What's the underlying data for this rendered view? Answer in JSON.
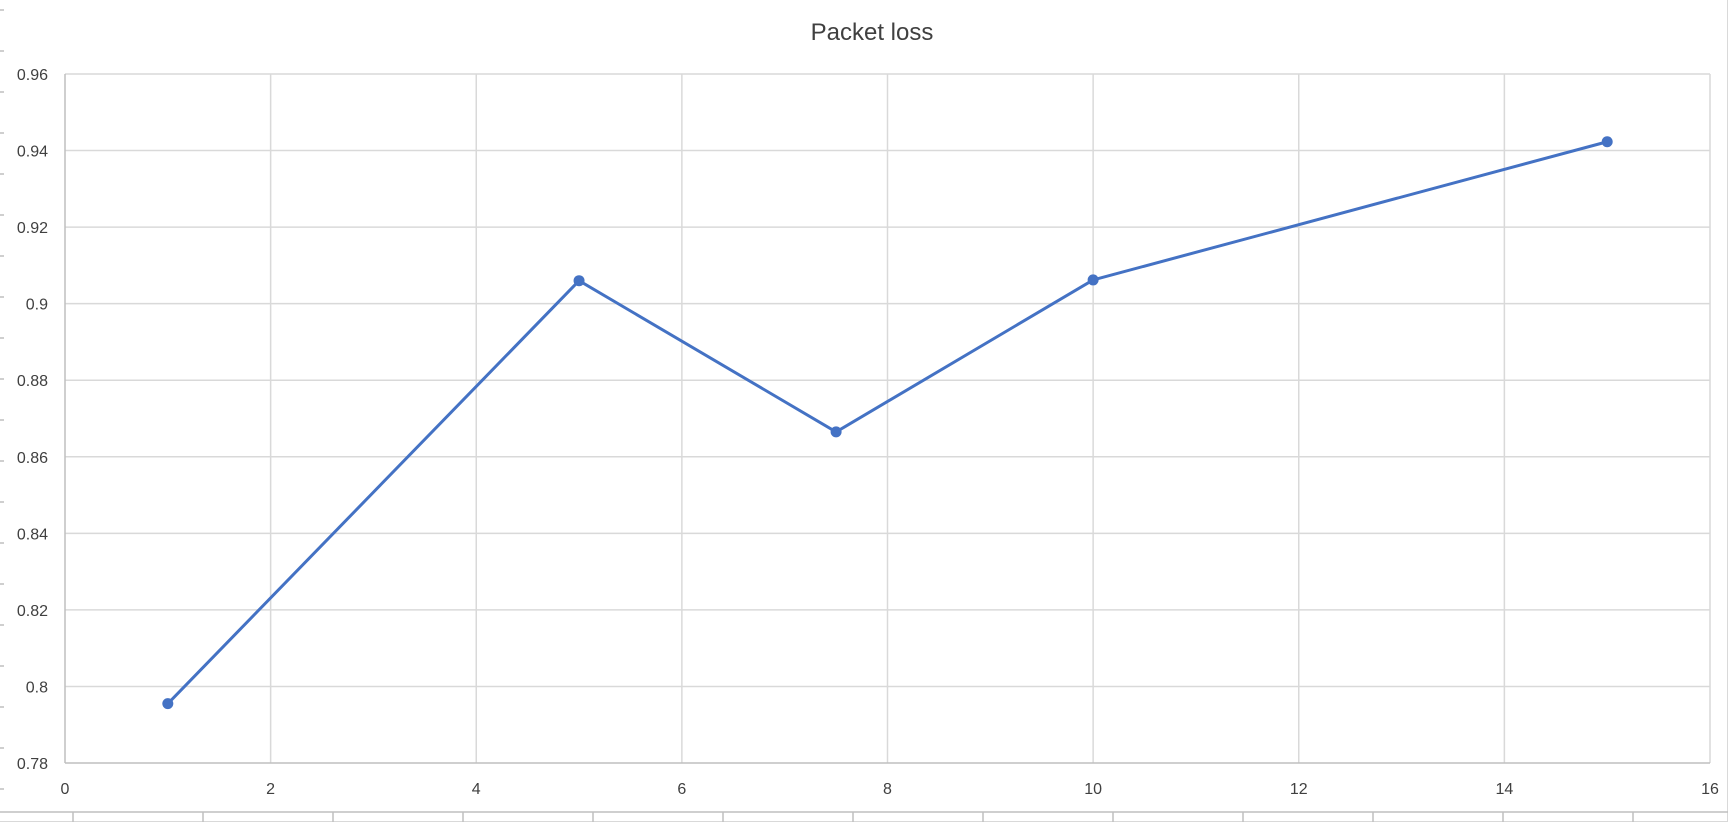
{
  "chart_data": {
    "type": "scatter",
    "title": "Packet loss",
    "xlabel": "",
    "ylabel": "",
    "xlim": [
      0,
      16
    ],
    "ylim": [
      0.78,
      0.96
    ],
    "xticks": [
      "0",
      "2",
      "4",
      "6",
      "8",
      "10",
      "12",
      "14",
      "16"
    ],
    "yticks": [
      "0.78",
      "0.8",
      "0.82",
      "0.84",
      "0.86",
      "0.88",
      "0.9",
      "0.92",
      "0.94",
      "0.96"
    ],
    "grid": true,
    "legend": "none",
    "series": [
      {
        "color": "#4472c4",
        "marker": "circle",
        "line": "straight",
        "x": [
          1,
          5,
          7.5,
          10,
          15
        ],
        "y": [
          0.7955,
          0.906,
          0.8665,
          0.9062,
          0.9423
        ]
      }
    ]
  }
}
